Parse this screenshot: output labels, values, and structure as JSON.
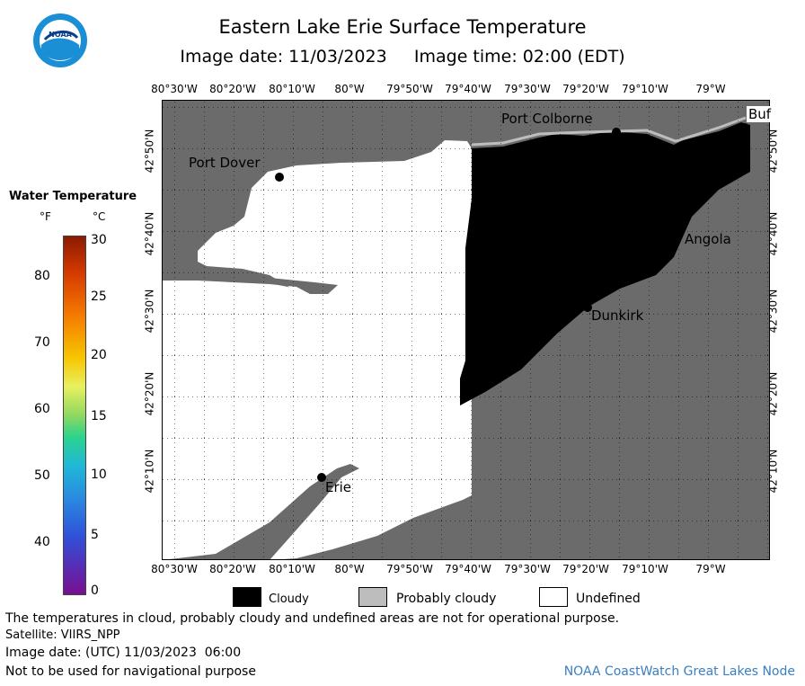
{
  "header": {
    "title": "Eastern Lake Erie Surface Temperature",
    "subtitle": "Image date: 11/03/2023     Image time: 02:00 (EDT)",
    "logo_text": "NOAA"
  },
  "map": {
    "lon_ticks": [
      "80°30'W",
      "80°20'W",
      "80°10'W",
      "80°W",
      "79°50'W",
      "79°40'W",
      "79°30'W",
      "79°20'W",
      "79°10'W",
      "79°W"
    ],
    "lat_ticks": [
      "42°50'N",
      "42°40'N",
      "42°30'N",
      "42°20'N",
      "42°10'N"
    ],
    "cities": [
      "Port Colborne",
      "Port Dover",
      "Angola",
      "Dunkirk",
      "Erie",
      "Buf"
    ],
    "colors": {
      "land": "#6b6b6b",
      "cloudy": "#000000",
      "probably_cloudy": "#bdbdbd",
      "undefined": "#ffffff",
      "grid": "#000000"
    }
  },
  "legend": {
    "title": "Water Temperature",
    "unit_f": "°F",
    "unit_c": "°C",
    "f_ticks": [
      "80",
      "70",
      "60",
      "50",
      "40"
    ],
    "c_ticks": [
      "30",
      "25",
      "20",
      "15",
      "10",
      "5",
      "0"
    ]
  },
  "key": {
    "cloudy": "Cloudy",
    "probably_cloudy": "Probably cloudy",
    "undefined": "Undefined"
  },
  "footer": {
    "note": "The temperatures in cloud, probably cloudy and undefined areas are not for operational purpose.",
    "satellite": "Satellite: VIIRS_NPP",
    "utc": "Image date: (UTC) 11/03/2023  06:00",
    "nav": "Not to be used for navigational purpose",
    "credit": "NOAA CoastWatch Great Lakes Node"
  }
}
